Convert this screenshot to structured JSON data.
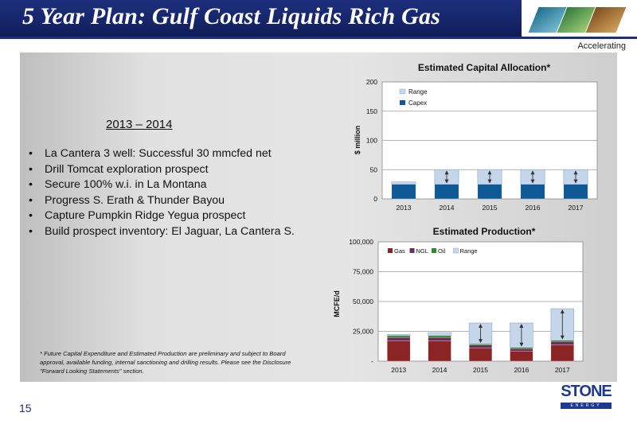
{
  "slide": {
    "title": "5 Year Plan: Gulf Coast Liquids Rich Gas",
    "tagline": "Accelerating",
    "page_number": "15",
    "logo_name": "STONE",
    "logo_sub": "ENERGY"
  },
  "content": {
    "period": "2013 – 2014",
    "bullets": [
      "La Cantera 3 well: Successful 30 mmcfed net",
      "Drill Tomcat exploration prospect",
      "Secure 100% w.i. in La Montana",
      "Progress S. Erath & Thunder Bayou",
      "Capture Pumpkin Ridge Yegua prospect",
      "Build prospect inventory: El Jaguar, La Cantera S."
    ],
    "footnote": "* Future Capital Expenditure and Estimated Production are preliminary and subject to Board approval, available funding, internal sanctioning and drilling results.  Please see the Disclosure \"Forward Looking Statements\" section."
  },
  "chart_data": [
    {
      "type": "bar",
      "title": "Estimated Capital Allocation*",
      "ylabel": "$ million",
      "categories": [
        "2013",
        "2014",
        "2015",
        "2016",
        "2017"
      ],
      "ylim": [
        0,
        200
      ],
      "yticks": [
        "0",
        "50",
        "100",
        "150",
        "200"
      ],
      "series": [
        {
          "name": "Capex",
          "values": [
            25,
            25,
            25,
            25,
            25
          ],
          "color": "#0f5a96"
        },
        {
          "name": "Range",
          "low": [
            25,
            25,
            25,
            25,
            25
          ],
          "high": [
            29,
            50,
            50,
            50,
            50
          ],
          "color": "#c5d5ea"
        }
      ],
      "legend_position": "top-left"
    },
    {
      "type": "bar",
      "title": "Estimated Production*",
      "ylabel": "MCFE/d",
      "categories": [
        "2013",
        "2014",
        "2015",
        "2016",
        "2017"
      ],
      "ylim": [
        0,
        100000
      ],
      "yticks": [
        "-",
        "25,000",
        "50,000",
        "75,000",
        "100,000"
      ],
      "series": [
        {
          "name": "Gas",
          "values": [
            17000,
            17000,
            11000,
            8500,
            13500
          ],
          "color": "#8b2525"
        },
        {
          "name": "NGL",
          "values": [
            3000,
            3000,
            2500,
            2000,
            3000
          ],
          "color": "#6b2f5c"
        },
        {
          "name": "Oil",
          "values": [
            1500,
            1500,
            1000,
            1000,
            1000
          ],
          "color": "#2f8a2f"
        },
        {
          "name": "Range",
          "low": [
            21500,
            21500,
            14500,
            11500,
            17500
          ],
          "high": [
            22500,
            24000,
            32000,
            32000,
            44000
          ],
          "color": "#c5d5ea"
        }
      ],
      "legend_position": "top-left"
    }
  ],
  "colors": {
    "title_bar": "#1d2f7c",
    "page_number": "#1d2f7c",
    "logo": "#1d3a8f"
  }
}
